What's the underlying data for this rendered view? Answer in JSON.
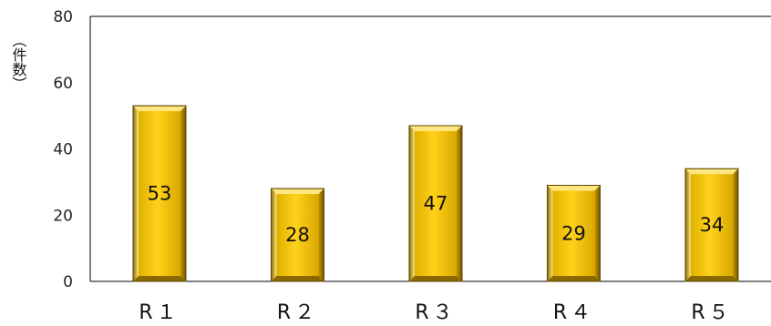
{
  "chart_data": {
    "type": "bar",
    "title": "",
    "xlabel": "",
    "ylabel": "（件数）",
    "categories": [
      "R１",
      "R２",
      "R３",
      "R４",
      "R５"
    ],
    "values": [
      53,
      28,
      47,
      29,
      34
    ],
    "ylim": [
      0,
      80
    ],
    "yticks": [
      0,
      20,
      40,
      60,
      80
    ],
    "grid": false,
    "legend": "none",
    "colors": {
      "bar_face": "#F5C400",
      "bar_highlight": "#FFE680",
      "bar_shadow": "#8A6A00",
      "bar_outline": "#5C4600",
      "axis": "#000000"
    }
  }
}
